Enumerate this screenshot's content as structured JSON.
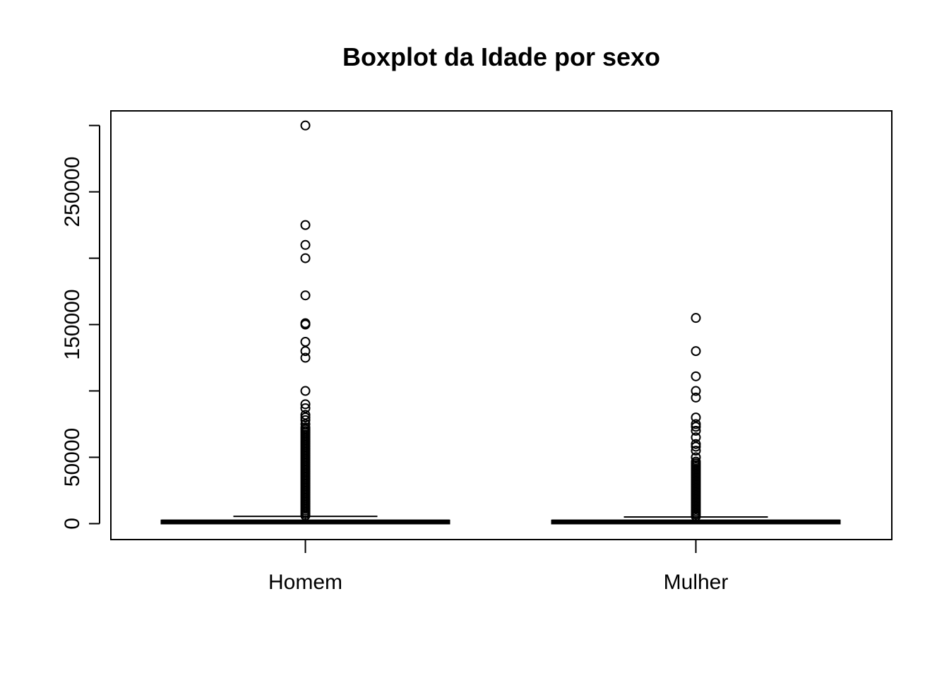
{
  "chart_data": {
    "type": "boxplot",
    "title": "Boxplot da Idade por sexo",
    "xlabel": "",
    "ylabel": "",
    "categories": [
      "Homem",
      "Mulher"
    ],
    "y_ticks": [
      0,
      50000,
      100000,
      150000,
      200000,
      250000,
      300000
    ],
    "y_tick_labels": [
      "0",
      "50000",
      "",
      "150000",
      "",
      "250000",
      ""
    ],
    "ylim": [
      -12000,
      311000
    ],
    "grid": false,
    "legend": "none",
    "groups": [
      {
        "name": "Homem",
        "min": 0,
        "q1": 0,
        "median": 1500,
        "q3": 2500,
        "max": 5500,
        "outlier_band": [
          6000,
          73000
        ],
        "outliers": [
          300000,
          225000,
          210000,
          200000,
          172000,
          151000,
          150000,
          137000,
          130000,
          125000,
          100000,
          90000,
          87000,
          82000,
          80000,
          78000,
          75000
        ]
      },
      {
        "name": "Mulher",
        "min": 0,
        "q1": 0,
        "median": 1500,
        "q3": 2500,
        "max": 5000,
        "outlier_band": [
          5500,
          48000
        ],
        "outliers": [
          155000,
          130000,
          111000,
          100000,
          95000,
          80000,
          75000,
          73000,
          70000,
          65000,
          60000,
          58000,
          55000,
          50000
        ]
      }
    ]
  }
}
